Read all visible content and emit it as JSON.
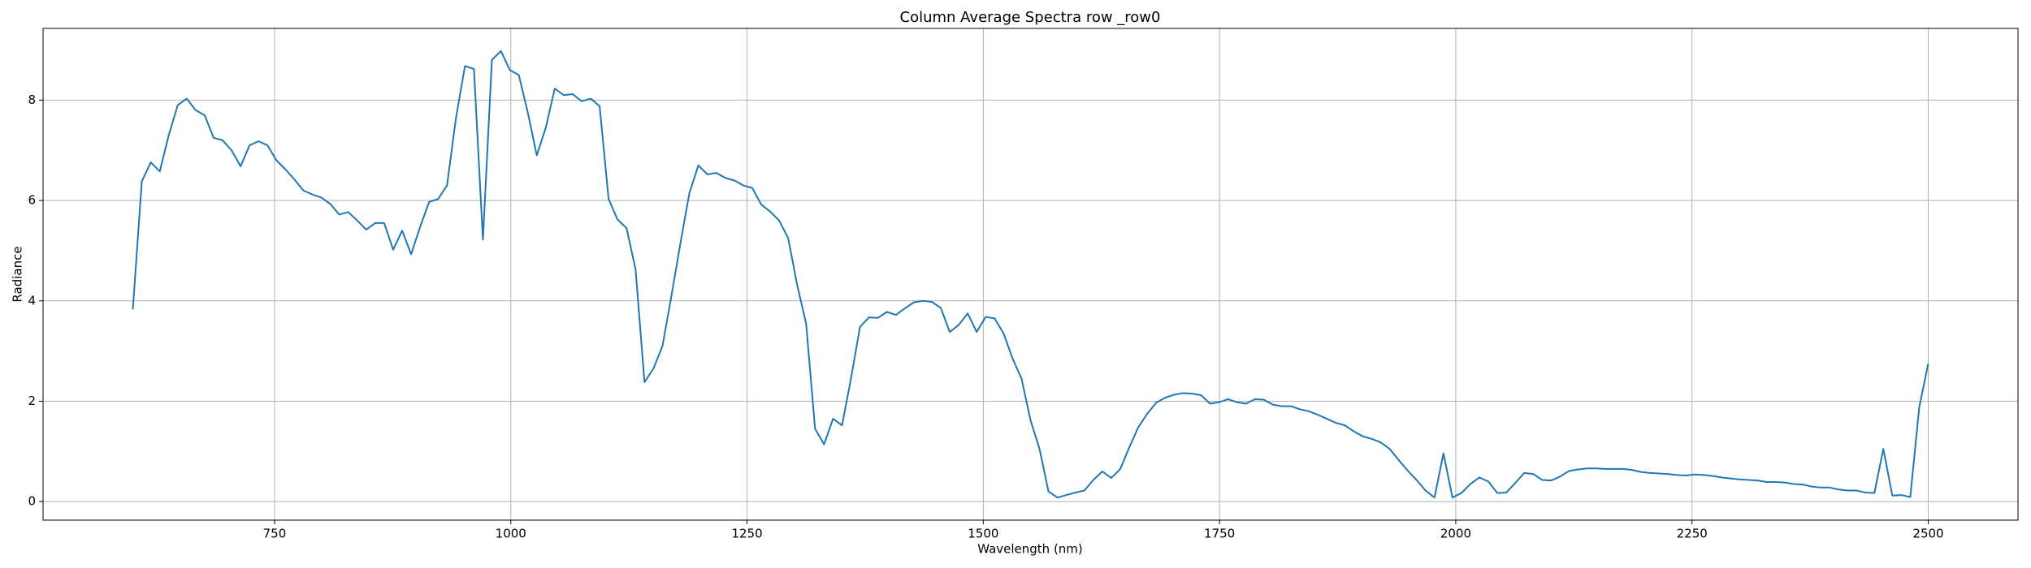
{
  "chart_data": {
    "type": "line",
    "title": "Column Average Spectra row _row0",
    "xlabel": "Wavelength (nm)",
    "ylabel": "Radiance",
    "color": "#1f77b4",
    "grid": true,
    "xlim": [
      505,
      2595
    ],
    "ylim": [
      -0.37,
      9.43
    ],
    "xticks": [
      750,
      1000,
      1250,
      1500,
      1750,
      2000,
      2250,
      2500
    ],
    "yticks": [
      0,
      2,
      4,
      6,
      8
    ],
    "x": [
      600,
      609.5,
      619,
      628.5,
      638,
      647.5,
      657,
      666.5,
      676,
      685.5,
      695,
      704.5,
      714,
      723.5,
      733,
      742.5,
      752,
      761.5,
      771,
      780.5,
      790,
      799.5,
      809,
      818.5,
      828,
      837.5,
      847,
      856.5,
      866,
      875.5,
      885,
      894.5,
      904,
      913.5,
      923,
      932.5,
      942,
      951.5,
      961,
      970.5,
      980,
      989.5,
      999,
      1008.5,
      1018,
      1027.5,
      1037,
      1046.5,
      1056,
      1065.5,
      1075,
      1084.5,
      1094,
      1103.5,
      1113,
      1122.5,
      1132,
      1141.5,
      1151,
      1160.5,
      1170,
      1179.5,
      1189,
      1198.5,
      1208,
      1217.5,
      1227,
      1236.5,
      1246,
      1255.5,
      1265,
      1274.5,
      1284,
      1293.5,
      1303,
      1312.5,
      1322,
      1331.5,
      1341,
      1350.5,
      1360,
      1369.5,
      1379,
      1388.5,
      1398,
      1407.5,
      1417,
      1426.5,
      1436,
      1445.5,
      1455,
      1464.5,
      1474,
      1483.5,
      1493,
      1502.5,
      1512,
      1521.5,
      1531,
      1540.5,
      1550,
      1559.5,
      1569,
      1578.5,
      1588,
      1597.5,
      1607,
      1616.5,
      1626,
      1635.5,
      1645,
      1654.5,
      1664,
      1673.5,
      1683,
      1692.5,
      1702,
      1711.5,
      1721,
      1730.5,
      1740,
      1749.5,
      1759,
      1768.5,
      1778,
      1787.5,
      1797,
      1806.5,
      1816,
      1825.5,
      1835,
      1844.5,
      1854,
      1863.5,
      1873,
      1882.5,
      1892,
      1901.5,
      1911,
      1920.5,
      1930,
      1939.5,
      1949,
      1958.5,
      1968,
      1977.5,
      1987,
      1996.5,
      2006,
      2015.5,
      2025,
      2034.5,
      2044,
      2053.5,
      2063,
      2072.5,
      2082,
      2091.5,
      2101,
      2110.5,
      2120,
      2129.5,
      2139,
      2148.5,
      2158,
      2167.5,
      2177,
      2186.5,
      2196,
      2205.5,
      2215,
      2224.5,
      2234,
      2243.5,
      2253,
      2262.5,
      2272,
      2281.5,
      2291,
      2300.5,
      2310,
      2319.5,
      2329,
      2338.5,
      2348,
      2357.5,
      2367,
      2376.5,
      2386,
      2395.5,
      2405,
      2414.5,
      2424,
      2433.5,
      2443,
      2452.5,
      2462,
      2471.5,
      2481,
      2490.5,
      2500
    ],
    "values": [
      3.83,
      6.38,
      6.76,
      6.58,
      7.3,
      7.9,
      8.03,
      7.8,
      7.7,
      7.25,
      7.2,
      7.0,
      6.68,
      7.1,
      7.18,
      7.1,
      6.8,
      6.62,
      6.42,
      6.2,
      6.12,
      6.06,
      5.93,
      5.72,
      5.77,
      5.6,
      5.42,
      5.55,
      5.55,
      5.02,
      5.4,
      4.93,
      5.47,
      5.97,
      6.03,
      6.3,
      7.65,
      8.68,
      8.62,
      5.22,
      8.8,
      8.98,
      8.6,
      8.5,
      7.75,
      6.9,
      7.45,
      8.23,
      8.1,
      8.12,
      7.98,
      8.03,
      7.88,
      6.03,
      5.62,
      5.45,
      4.63,
      2.38,
      2.65,
      3.1,
      4.1,
      5.15,
      6.15,
      6.7,
      6.52,
      6.55,
      6.45,
      6.4,
      6.3,
      6.25,
      5.92,
      5.78,
      5.6,
      5.25,
      4.32,
      3.55,
      1.45,
      1.14,
      1.65,
      1.52,
      2.45,
      3.48,
      3.67,
      3.66,
      3.78,
      3.72,
      3.85,
      3.97,
      4.0,
      3.98,
      3.86,
      3.38,
      3.52,
      3.75,
      3.38,
      3.68,
      3.65,
      3.35,
      2.85,
      2.45,
      1.62,
      1.05,
      0.2,
      0.08,
      0.13,
      0.18,
      0.22,
      0.43,
      0.6,
      0.47,
      0.65,
      1.08,
      1.48,
      1.75,
      1.97,
      2.07,
      2.13,
      2.16,
      2.15,
      2.12,
      1.95,
      1.98,
      2.04,
      1.98,
      1.95,
      2.04,
      2.03,
      1.93,
      1.9,
      1.9,
      1.84,
      1.8,
      1.73,
      1.65,
      1.57,
      1.52,
      1.4,
      1.3,
      1.25,
      1.18,
      1.05,
      0.83,
      0.62,
      0.43,
      0.22,
      0.08,
      0.96,
      0.08,
      0.17,
      0.35,
      0.48,
      0.4,
      0.17,
      0.18,
      0.37,
      0.57,
      0.55,
      0.43,
      0.42,
      0.5,
      0.61,
      0.64,
      0.66,
      0.66,
      0.65,
      0.65,
      0.65,
      0.63,
      0.59,
      0.57,
      0.56,
      0.55,
      0.53,
      0.52,
      0.54,
      0.53,
      0.51,
      0.48,
      0.46,
      0.44,
      0.43,
      0.42,
      0.39,
      0.39,
      0.38,
      0.35,
      0.34,
      0.3,
      0.28,
      0.28,
      0.24,
      0.22,
      0.22,
      0.18,
      0.17,
      1.05,
      0.12,
      0.13,
      0.09,
      1.88,
      2.75
    ]
  }
}
